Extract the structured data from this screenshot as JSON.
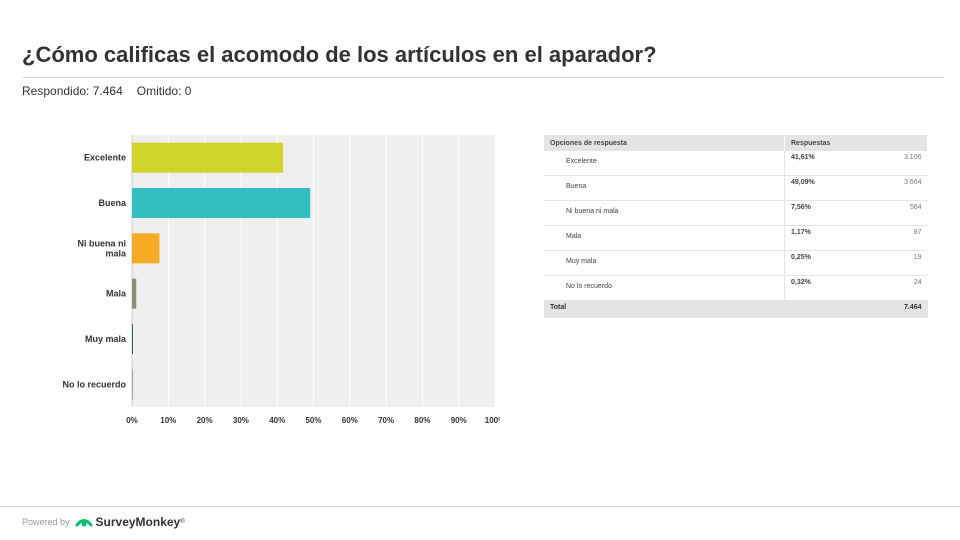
{
  "question": {
    "title": "¿Cómo calificas el acomodo de los artículos en el aparador?",
    "answered_label": "Respondido: 7.464",
    "skipped_label": "Omitido: 0"
  },
  "chart_data": {
    "type": "bar",
    "orientation": "horizontal",
    "categories": [
      "Excelente",
      "Buena",
      "Ni buena ni mala",
      "Mala",
      "Muy mala",
      "No lo recuerdo"
    ],
    "category_lines": [
      [
        "Excelente"
      ],
      [
        "Buena"
      ],
      [
        "Ni buena ni",
        "mala"
      ],
      [
        "Mala"
      ],
      [
        "Muy mala"
      ],
      [
        "No lo recuerdo"
      ]
    ],
    "values": [
      41.61,
      49.09,
      7.56,
      1.17,
      0.25,
      0.32
    ],
    "colors": [
      "#cdd52a",
      "#33bfbf",
      "#f5ab22",
      "#8a8e7a",
      "#2a5d66",
      "#a9a9a9"
    ],
    "xlim": [
      0,
      100
    ],
    "x_ticks": [
      "0%",
      "10%",
      "20%",
      "30%",
      "40%",
      "50%",
      "60%",
      "70%",
      "80%",
      "90%",
      "100%"
    ],
    "grid": true,
    "title": "",
    "xlabel": "",
    "ylabel": ""
  },
  "table": {
    "header_option": "Opciones de respuesta",
    "header_responses": "Respuestas",
    "rows": [
      {
        "option": "Excelente",
        "percent": "41,61%",
        "count": "3.106"
      },
      {
        "option": "Buena",
        "percent": "49,09%",
        "count": "3.664"
      },
      {
        "option": "Ni buena ni mala",
        "percent": "7,56%",
        "count": "564"
      },
      {
        "option": "Mala",
        "percent": "1,17%",
        "count": "87"
      },
      {
        "option": "Muy mala",
        "percent": "0,25%",
        "count": "19"
      },
      {
        "option": "No lo recuerdo",
        "percent": "0,32%",
        "count": "24"
      }
    ],
    "total_label": "Total",
    "total_value": "7.464"
  },
  "footer": {
    "powered_by": "Powered by",
    "brand": "SurveyMonkey",
    "trademark": "®",
    "logo_icon": "surveymonkey-logo-icon"
  }
}
